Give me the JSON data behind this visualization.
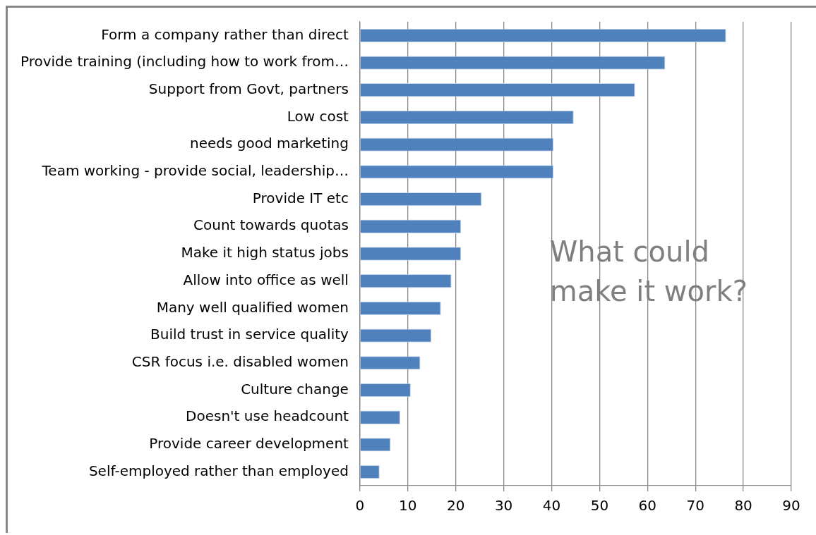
{
  "chart_data": {
    "type": "bar",
    "orientation": "horizontal",
    "categories": [
      "Form a company rather than direct",
      "Provide training (including how to work from…",
      "Support from Govt, partners",
      "Low cost",
      "needs good marketing",
      "Team working - provide social, leadership…",
      "Provide IT etc",
      "Count towards quotas",
      "Make it high status jobs",
      "Allow into office as well",
      "Many well qualified women",
      "Build trust in service quality",
      "CSR focus i.e. disabled women",
      "Culture change",
      "Doesn't use headcount",
      "Provide career development",
      "Self-employed rather than employed"
    ],
    "values": [
      76.4,
      63.7,
      57.4,
      44.6,
      40.4,
      40.4,
      25.4,
      21.1,
      21.1,
      19.1,
      16.9,
      14.9,
      12.6,
      10.6,
      8.4,
      6.4,
      4.1
    ],
    "color": "#4f81bd",
    "xlim": [
      0,
      90
    ],
    "xticks": [
      0,
      10,
      20,
      30,
      40,
      50,
      60,
      70,
      80,
      90
    ],
    "grid": "x",
    "legend": false,
    "annotations": [
      "What could make it work?"
    ]
  }
}
